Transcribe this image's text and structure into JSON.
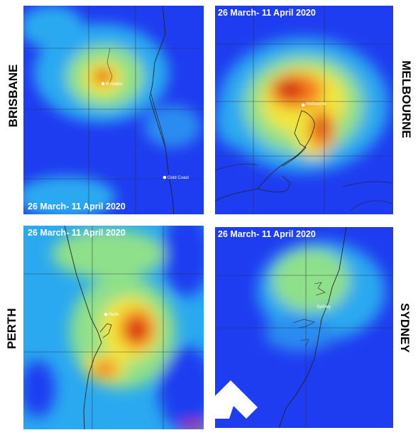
{
  "panels": [
    {
      "city": "BRISBANE",
      "date_label": "26 March- 11 April 2020",
      "markers": [
        "Brisbane",
        "Gold Coast"
      ]
    },
    {
      "city": "MELBOURNE",
      "date_label": "26 March- 11 April 2020",
      "markers": [
        "Melbourne"
      ]
    },
    {
      "city": "PERTH",
      "date_label": "26 March- 11 April 2020",
      "markers": [
        "Perth"
      ]
    },
    {
      "city": "SYDNEY",
      "date_label": "26 March- 11 April 2020",
      "markers": [
        "Sydney"
      ]
    }
  ],
  "colors": {
    "low": "#1f3df0",
    "mid_low": "#2aa9f0",
    "mid": "#8fe08a",
    "mid_high": "#f2e63a",
    "high": "#f57a1f",
    "peak": "#cc1010"
  }
}
